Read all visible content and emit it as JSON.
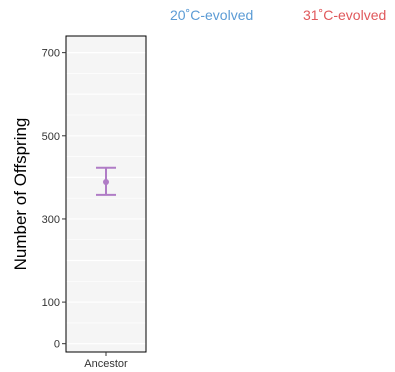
{
  "chart_data": {
    "type": "scatter",
    "title": "",
    "xlabel": "",
    "ylabel": "Number of Offspring",
    "categories": [
      "Ancestor"
    ],
    "ylim": [
      -20,
      740
    ],
    "y_ticks": [
      0,
      100,
      300,
      500,
      700
    ],
    "grid": true,
    "legend_position": "top",
    "series": [
      {
        "name": "Ancestor",
        "color": "#b07cc6",
        "points": [
          {
            "x": "Ancestor",
            "y": 389,
            "ymin": 358,
            "ymax": 423
          }
        ]
      }
    ],
    "legend_items": [
      {
        "name": "20˚C-evolved",
        "color": "#5b9bd5"
      },
      {
        "name": "31˚C-evolved",
        "color": "#e0585b"
      }
    ]
  }
}
